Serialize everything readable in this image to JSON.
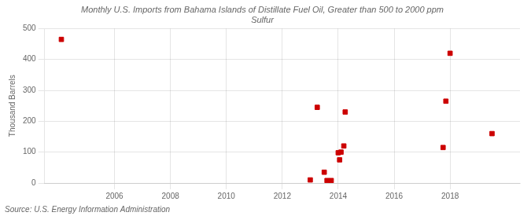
{
  "chart_data": {
    "type": "scatter",
    "title": "Monthly U.S. Imports from Bahama Islands of Distillate Fuel Oil, Greater than 500 to 2000 ppm\nSulfur",
    "ylabel": "Thousand Barrels",
    "annotations": [
      "Source: U.S. Energy Information Administration"
    ],
    "x": [
      2004.1,
      2013.0,
      2013.25,
      2013.5,
      2013.6,
      2013.75,
      2014.0,
      2014.05,
      2014.1,
      2014.2,
      2014.25,
      2017.75,
      2017.85,
      2018.0,
      2019.5
    ],
    "values": [
      465,
      10,
      245,
      35,
      8,
      8,
      98,
      75,
      100,
      120,
      230,
      115,
      265,
      420,
      160
    ],
    "color": "#cc0000",
    "marker": "square",
    "xlim": [
      2003.5,
      2020.5
    ],
    "xticks": [
      2006,
      2008,
      2010,
      2012,
      2014,
      2016,
      2018
    ],
    "ylim": [
      0,
      500
    ],
    "yticks": [
      0,
      100,
      200,
      300,
      400,
      500
    ],
    "grid": true
  }
}
